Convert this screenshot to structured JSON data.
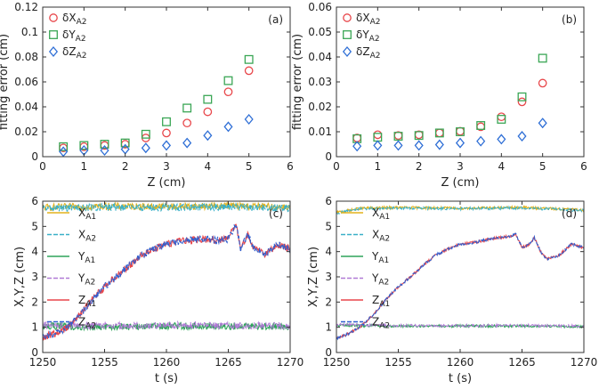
{
  "panels": [
    {
      "id": "a",
      "type": "scatter",
      "tag": "(a)",
      "xlabel": "Z (cm)",
      "ylabel": "fitting error (cm)",
      "xlim": [
        0,
        6
      ],
      "ylim": [
        0,
        0.12
      ],
      "xticks": [
        0,
        1,
        2,
        3,
        4,
        5,
        6
      ],
      "yticks": [
        0,
        0.02,
        0.04,
        0.06,
        0.08,
        0.1,
        0.12
      ],
      "ytick_labels": [
        "0",
        "0.02",
        "0.04",
        "0.06",
        "0.08",
        "0.1",
        "0.12"
      ],
      "x": [
        0.5,
        1.0,
        1.5,
        2.0,
        2.5,
        3.0,
        3.5,
        4.0,
        4.5,
        5.0
      ],
      "series": [
        {
          "name": "δX",
          "sub": "A2",
          "marker": "circle",
          "color": "#e8474b",
          "values": [
            0.007,
            0.008,
            0.009,
            0.01,
            0.015,
            0.019,
            0.027,
            0.036,
            0.052,
            0.069
          ]
        },
        {
          "name": "δY",
          "sub": "A2",
          "marker": "square",
          "color": "#3aa655",
          "values": [
            0.008,
            0.009,
            0.01,
            0.011,
            0.018,
            0.028,
            0.039,
            0.046,
            0.061,
            0.078
          ]
        },
        {
          "name": "δZ",
          "sub": "A2",
          "marker": "diamond",
          "color": "#2f6fd6",
          "values": [
            0.004,
            0.005,
            0.005,
            0.006,
            0.007,
            0.009,
            0.011,
            0.017,
            0.024,
            0.03
          ]
        }
      ]
    },
    {
      "id": "b",
      "type": "scatter",
      "tag": "(b)",
      "xlabel": "Z (cm)",
      "ylabel": "fitting error (cm)",
      "xlim": [
        0,
        6
      ],
      "ylim": [
        0,
        0.06
      ],
      "xticks": [
        0,
        1,
        2,
        3,
        4,
        5,
        6
      ],
      "yticks": [
        0,
        0.01,
        0.02,
        0.03,
        0.04,
        0.05,
        0.06
      ],
      "ytick_labels": [
        "0",
        "0.01",
        "0.02",
        "0.03",
        "0.04",
        "0.05",
        "0.06"
      ],
      "x": [
        0.5,
        1.0,
        1.5,
        2.0,
        2.5,
        3.0,
        3.5,
        4.0,
        4.5,
        5.0
      ],
      "series": [
        {
          "name": "δX",
          "sub": "A2",
          "marker": "circle",
          "color": "#e8474b",
          "values": [
            0.0075,
            0.0088,
            0.0085,
            0.0088,
            0.0095,
            0.0102,
            0.012,
            0.016,
            0.022,
            0.0295
          ]
        },
        {
          "name": "δY",
          "sub": "A2",
          "marker": "square",
          "color": "#3aa655",
          "values": [
            0.0072,
            0.0078,
            0.0082,
            0.0085,
            0.0095,
            0.01,
            0.0125,
            0.015,
            0.024,
            0.0395
          ]
        },
        {
          "name": "δZ",
          "sub": "A2",
          "marker": "diamond",
          "color": "#2f6fd6",
          "values": [
            0.0042,
            0.0045,
            0.0045,
            0.0045,
            0.0048,
            0.0055,
            0.0062,
            0.007,
            0.0082,
            0.0135
          ]
        }
      ]
    },
    {
      "id": "c",
      "type": "line",
      "tag": "(c)",
      "xlabel": "t (s)",
      "ylabel": "X,Y,Z (cm)",
      "xlim": [
        1250,
        1270
      ],
      "ylim": [
        0,
        6
      ],
      "xticks": [
        1250,
        1255,
        1260,
        1265,
        1270
      ],
      "yticks": [
        0,
        1,
        2,
        3,
        4,
        5,
        6
      ],
      "ytick_labels": [
        "0",
        "1",
        "2",
        "3",
        "4",
        "5",
        "6"
      ],
      "noise": 0.14,
      "series": [
        {
          "name": "X",
          "sub": "A1",
          "color": "#e3b21c",
          "dash": false,
          "points": [
            [
              1250,
              5.75
            ],
            [
              1255,
              5.8
            ],
            [
              1260,
              5.78
            ],
            [
              1265,
              5.82
            ],
            [
              1270,
              5.76
            ]
          ]
        },
        {
          "name": "X",
          "sub": "A2",
          "color": "#3ab0c8",
          "dash": true,
          "points": [
            [
              1250,
              5.72
            ],
            [
              1255,
              5.76
            ],
            [
              1260,
              5.74
            ],
            [
              1265,
              5.78
            ],
            [
              1270,
              5.72
            ]
          ]
        },
        {
          "name": "Y",
          "sub": "A1",
          "color": "#2ea35a",
          "dash": false,
          "points": [
            [
              1250,
              1.05
            ],
            [
              1255,
              1.0
            ],
            [
              1260,
              1.05
            ],
            [
              1265,
              1.05
            ],
            [
              1270,
              1.02
            ]
          ]
        },
        {
          "name": "Y",
          "sub": "A2",
          "color": "#b07ad6",
          "dash": true,
          "points": [
            [
              1250,
              1.08
            ],
            [
              1255,
              1.05
            ],
            [
              1260,
              1.08
            ],
            [
              1265,
              1.08
            ],
            [
              1270,
              1.06
            ]
          ]
        },
        {
          "name": "Z",
          "sub": "A1",
          "color": "#e8474b",
          "dash": false,
          "points": [
            [
              1250,
              0.6
            ],
            [
              1251,
              0.75
            ],
            [
              1252,
              1.0
            ],
            [
              1253,
              1.5
            ],
            [
              1254,
              2.1
            ],
            [
              1255,
              2.6
            ],
            [
              1256,
              3.05
            ],
            [
              1257,
              3.45
            ],
            [
              1258,
              3.85
            ],
            [
              1259,
              4.1
            ],
            [
              1260,
              4.3
            ],
            [
              1261,
              4.4
            ],
            [
              1262,
              4.45
            ],
            [
              1263,
              4.5
            ],
            [
              1264,
              4.45
            ],
            [
              1265,
              4.5
            ],
            [
              1265.6,
              5.1
            ],
            [
              1266,
              4.1
            ],
            [
              1266.6,
              4.7
            ],
            [
              1267,
              4.2
            ],
            [
              1268,
              3.9
            ],
            [
              1269,
              4.3
            ],
            [
              1270,
              4.1
            ]
          ]
        },
        {
          "name": "Z",
          "sub": "A2",
          "color": "#2f5fcf",
          "dash": true,
          "points": [
            [
              1250,
              0.6
            ],
            [
              1251,
              0.75
            ],
            [
              1252,
              1.0
            ],
            [
              1253,
              1.5
            ],
            [
              1254,
              2.1
            ],
            [
              1255,
              2.6
            ],
            [
              1256,
              3.05
            ],
            [
              1257,
              3.45
            ],
            [
              1258,
              3.85
            ],
            [
              1259,
              4.1
            ],
            [
              1260,
              4.3
            ],
            [
              1261,
              4.4
            ],
            [
              1262,
              4.45
            ],
            [
              1263,
              4.5
            ],
            [
              1264,
              4.45
            ],
            [
              1265,
              4.5
            ],
            [
              1265.6,
              5.1
            ],
            [
              1266,
              4.1
            ],
            [
              1266.6,
              4.7
            ],
            [
              1267,
              4.2
            ],
            [
              1268,
              3.9
            ],
            [
              1269,
              4.3
            ],
            [
              1270,
              4.1
            ]
          ]
        }
      ]
    },
    {
      "id": "d",
      "type": "line",
      "tag": "(d)",
      "xlabel": "t (s)",
      "ylabel": "X,Y,Z (cm)",
      "xlim": [
        1250,
        1270
      ],
      "ylim": [
        0,
        6
      ],
      "xticks": [
        1250,
        1255,
        1260,
        1265,
        1270
      ],
      "yticks": [
        0,
        1,
        2,
        3,
        4,
        5,
        6
      ],
      "ytick_labels": [
        "0",
        "1",
        "2",
        "3",
        "4",
        "5",
        "6"
      ],
      "noise": 0.05,
      "series": [
        {
          "name": "X",
          "sub": "A1",
          "color": "#e3b21c",
          "dash": false,
          "points": [
            [
              1250,
              5.55
            ],
            [
              1252,
              5.72
            ],
            [
              1255,
              5.75
            ],
            [
              1260,
              5.72
            ],
            [
              1265,
              5.75
            ],
            [
              1270,
              5.65
            ]
          ]
        },
        {
          "name": "X",
          "sub": "A2",
          "color": "#3ab0c8",
          "dash": true,
          "points": [
            [
              1250,
              5.52
            ],
            [
              1252,
              5.7
            ],
            [
              1255,
              5.73
            ],
            [
              1260,
              5.7
            ],
            [
              1265,
              5.73
            ],
            [
              1270,
              5.63
            ]
          ]
        },
        {
          "name": "Y",
          "sub": "A1",
          "color": "#2ea35a",
          "dash": false,
          "points": [
            [
              1250,
              1.08
            ],
            [
              1255,
              1.05
            ],
            [
              1260,
              1.05
            ],
            [
              1265,
              1.05
            ],
            [
              1270,
              1.03
            ]
          ]
        },
        {
          "name": "Y",
          "sub": "A2",
          "color": "#b07ad6",
          "dash": true,
          "points": [
            [
              1250,
              1.1
            ],
            [
              1255,
              1.07
            ],
            [
              1260,
              1.07
            ],
            [
              1265,
              1.07
            ],
            [
              1270,
              1.05
            ]
          ]
        },
        {
          "name": "Z",
          "sub": "A1",
          "color": "#e8474b",
          "dash": false,
          "points": [
            [
              1250,
              0.55
            ],
            [
              1251,
              0.75
            ],
            [
              1252,
              1.05
            ],
            [
              1253,
              1.5
            ],
            [
              1254,
              2.1
            ],
            [
              1255,
              2.6
            ],
            [
              1256,
              3.0
            ],
            [
              1257,
              3.45
            ],
            [
              1258,
              3.85
            ],
            [
              1259,
              4.1
            ],
            [
              1260,
              4.3
            ],
            [
              1261,
              4.35
            ],
            [
              1262,
              4.45
            ],
            [
              1263,
              4.55
            ],
            [
              1264,
              4.6
            ],
            [
              1264.5,
              4.7
            ],
            [
              1265,
              4.15
            ],
            [
              1265.6,
              4.3
            ],
            [
              1266,
              4.55
            ],
            [
              1266.5,
              4.0
            ],
            [
              1267,
              3.7
            ],
            [
              1268,
              3.85
            ],
            [
              1269,
              4.3
            ],
            [
              1270,
              4.15
            ]
          ]
        },
        {
          "name": "Z",
          "sub": "A2",
          "color": "#2f5fcf",
          "dash": true,
          "points": [
            [
              1250,
              0.55
            ],
            [
              1251,
              0.75
            ],
            [
              1252,
              1.05
            ],
            [
              1253,
              1.5
            ],
            [
              1254,
              2.1
            ],
            [
              1255,
              2.6
            ],
            [
              1256,
              3.0
            ],
            [
              1257,
              3.45
            ],
            [
              1258,
              3.85
            ],
            [
              1259,
              4.1
            ],
            [
              1260,
              4.3
            ],
            [
              1261,
              4.35
            ],
            [
              1262,
              4.45
            ],
            [
              1263,
              4.55
            ],
            [
              1264,
              4.6
            ],
            [
              1264.5,
              4.7
            ],
            [
              1265,
              4.15
            ],
            [
              1265.6,
              4.3
            ],
            [
              1266,
              4.55
            ],
            [
              1266.5,
              4.0
            ],
            [
              1267,
              3.7
            ],
            [
              1268,
              3.85
            ],
            [
              1269,
              4.3
            ],
            [
              1270,
              4.15
            ]
          ]
        }
      ]
    }
  ]
}
